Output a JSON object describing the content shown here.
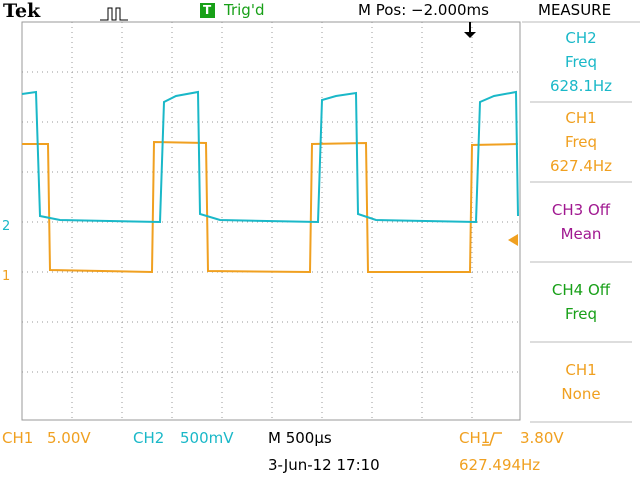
{
  "header": {
    "brand": "Tek",
    "trigger_icon": "T",
    "trigger_status": "Trig'd",
    "position": "M Pos: −2.000ms"
  },
  "markers": {
    "ch2": "2",
    "ch1": "1"
  },
  "measure": {
    "title": "MEASURE",
    "items": [
      {
        "lines": [
          "CH2",
          "Freq",
          "628.1Hz"
        ]
      },
      {
        "lines": [
          "CH1",
          "Freq",
          "627.4Hz"
        ]
      },
      {
        "lines": [
          "CH3 Off",
          "Mean"
        ]
      },
      {
        "lines": [
          "CH4 Off",
          "Freq"
        ]
      },
      {
        "lines": [
          "CH1",
          "None"
        ]
      }
    ]
  },
  "footer": {
    "ch1_label": "CH1",
    "ch1_scale": "5.00V",
    "ch2_label": "CH2",
    "ch2_scale": "500mV",
    "timebase": "M 500µs",
    "date": "3-Jun-12 17:10",
    "trigger_channel": "CH1",
    "trigger_level": "3.80V",
    "trigger_frequency": "627.494Hz"
  }
}
